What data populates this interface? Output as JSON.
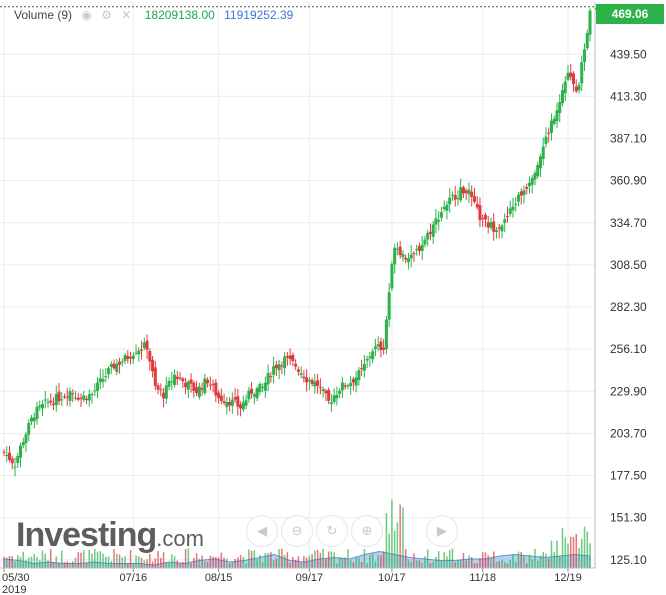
{
  "legend": {
    "label": "Volume (9)",
    "icons": [
      "eye-icon",
      "settings-icon",
      "close-icon"
    ],
    "value_primary": "18209138.00",
    "value_secondary": "11919252.39"
  },
  "price_tag": "469.06",
  "logo": {
    "brand": "Investing",
    "suffix": ".com"
  },
  "nav_controls": [
    "scroll-left-icon",
    "zoom-out-icon",
    "reset-icon",
    "zoom-in-icon",
    "scroll-right-icon"
  ],
  "colors": {
    "up": "#2db24a",
    "down": "#e0393e",
    "volume_area": "#9cc2ee",
    "volume_line": "#5d94dc",
    "grid": "#ececec",
    "axis_text": "#333333"
  },
  "chart_data": {
    "type": "candlestick",
    "y_ticks": [
      "125.10",
      "151.30",
      "177.50",
      "203.70",
      "229.90",
      "256.10",
      "282.30",
      "308.50",
      "334.70",
      "360.90",
      "387.10",
      "413.30",
      "439.50"
    ],
    "ylim": [
      120,
      472
    ],
    "x_ticks": [
      "05/30",
      "07/16",
      "08/15",
      "09/17",
      "10/17",
      "11/18",
      "12/19"
    ],
    "x_year": "2019",
    "last_price": 469.06,
    "close_path": [
      [
        0,
        192
      ],
      [
        4,
        185
      ],
      [
        7,
        200
      ],
      [
        11,
        216
      ],
      [
        15,
        222
      ],
      [
        20,
        226
      ],
      [
        24,
        230
      ],
      [
        28,
        226
      ],
      [
        32,
        228
      ],
      [
        36,
        238
      ],
      [
        40,
        246
      ],
      [
        44,
        250
      ],
      [
        48,
        256
      ],
      [
        52,
        258
      ],
      [
        55,
        232
      ],
      [
        58,
        228
      ],
      [
        62,
        240
      ],
      [
        66,
        235
      ],
      [
        70,
        230
      ],
      [
        74,
        237
      ],
      [
        78,
        226
      ],
      [
        82,
        224
      ],
      [
        86,
        220
      ],
      [
        90,
        230
      ],
      [
        94,
        232
      ],
      [
        98,
        245
      ],
      [
        102,
        250
      ],
      [
        106,
        246
      ],
      [
        110,
        238
      ],
      [
        114,
        234
      ],
      [
        118,
        223
      ],
      [
        122,
        232
      ],
      [
        126,
        236
      ],
      [
        130,
        242
      ],
      [
        134,
        256
      ],
      [
        138,
        258
      ],
      [
        140,
        292
      ],
      [
        142,
        322
      ],
      [
        145,
        315
      ],
      [
        148,
        312
      ],
      [
        152,
        322
      ],
      [
        156,
        333
      ],
      [
        160,
        345
      ],
      [
        164,
        352
      ],
      [
        168,
        356
      ],
      [
        171,
        345
      ],
      [
        174,
        335
      ],
      [
        178,
        332
      ],
      [
        182,
        335
      ],
      [
        186,
        348
      ],
      [
        190,
        358
      ],
      [
        194,
        372
      ],
      [
        198,
        392
      ],
      [
        202,
        412
      ],
      [
        205,
        428
      ],
      [
        208,
        415
      ],
      [
        211,
        440
      ],
      [
        213,
        469
      ]
    ],
    "volume_series": [
      6,
      5,
      3,
      4,
      3,
      3,
      4,
      3,
      3,
      3,
      2,
      4,
      3,
      5,
      6,
      4,
      5,
      7,
      9,
      5,
      4,
      6,
      7,
      6,
      9,
      11,
      9,
      7,
      6,
      5,
      5,
      6,
      6,
      8,
      9,
      8,
      7,
      8,
      9,
      8
    ],
    "volume_max": 60
  }
}
